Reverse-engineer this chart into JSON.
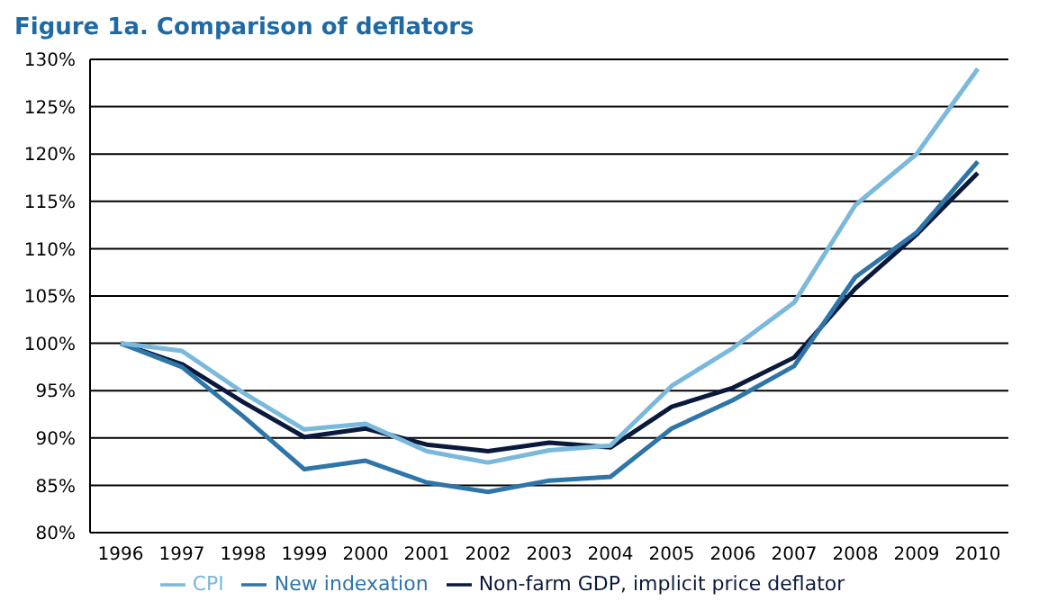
{
  "chart_data": {
    "type": "line",
    "title": "Figure 1a.  Comparison of deflators",
    "categories": [
      "1996",
      "1997",
      "1998",
      "1999",
      "2000",
      "2001",
      "2002",
      "2003",
      "2004",
      "2005",
      "2006",
      "2007",
      "2008",
      "2009",
      "2010"
    ],
    "series": [
      {
        "name": "Non-farm GDP, implicit price deflator",
        "color": "#0b1a3c",
        "values": [
          100,
          97.8,
          93.8,
          90.1,
          91,
          89.3,
          88.6,
          89.5,
          89,
          93.3,
          95.3,
          98.5,
          105.8,
          111.5,
          118
        ]
      },
      {
        "name": "New indexation",
        "color": "#2e75a8",
        "values": [
          100,
          97.5,
          92.3,
          86.7,
          87.6,
          85.3,
          84.3,
          85.5,
          85.9,
          91,
          94,
          97.6,
          107,
          111.7,
          119.2
        ]
      },
      {
        "name": "CPI",
        "color": "#7ab8dc",
        "values": [
          100,
          99.2,
          94.8,
          90.9,
          91.5,
          88.6,
          87.4,
          88.7,
          89.2,
          95.5,
          99.5,
          104.3,
          114.6,
          120,
          129
        ]
      }
    ],
    "ylim": [
      80,
      130
    ],
    "yticks": [
      {
        "value": 80,
        "label": "80%"
      },
      {
        "value": 85,
        "label": "85%"
      },
      {
        "value": 90,
        "label": "90%"
      },
      {
        "value": 95,
        "label": "95%"
      },
      {
        "value": 100,
        "label": "100%"
      },
      {
        "value": 105,
        "label": "105%"
      },
      {
        "value": 110,
        "label": "110%"
      },
      {
        "value": 115,
        "label": "115%"
      },
      {
        "value": 120,
        "label": "120%"
      },
      {
        "value": 125,
        "label": "125%"
      },
      {
        "value": 130,
        "label": "130%"
      }
    ],
    "grid": "y",
    "legend": "bottom",
    "marker": "none",
    "line_style": "solid"
  }
}
